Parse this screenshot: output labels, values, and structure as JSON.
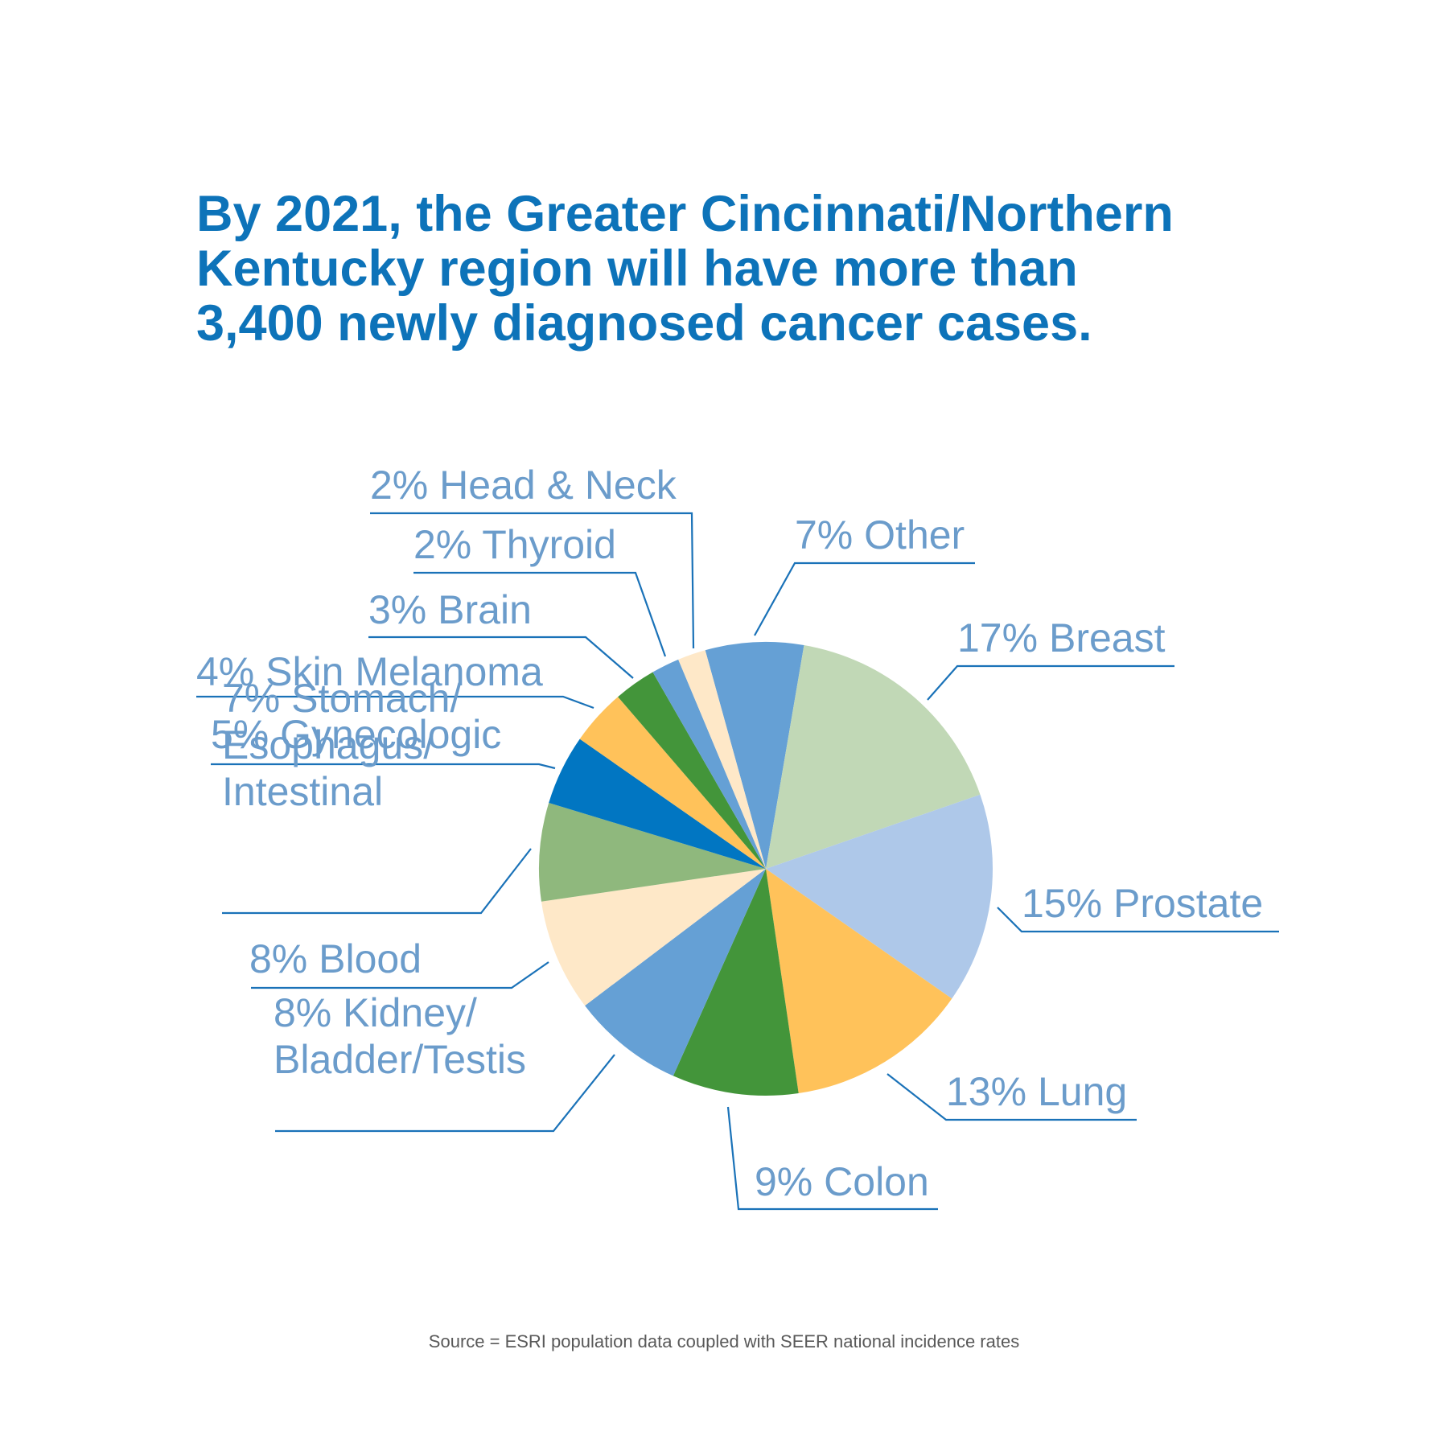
{
  "title": {
    "lines": [
      "By 2021, the Greater Cincinnati/Northern",
      "Kentucky region will have more than",
      "3,400 newly diagnosed cancer cases."
    ]
  },
  "source": "Source = ESRI population data coupled with SEER national incidence rates",
  "chart_data": {
    "type": "pie",
    "title": "By 2021, the Greater Cincinnati/Northern Kentucky region will have more than 3,400 newly diagnosed cancer cases.",
    "unit": "%",
    "slices": [
      {
        "label": "Other",
        "value": 7,
        "text_lines": [
          "7% Other"
        ],
        "color": "#65a0d5"
      },
      {
        "label": "Breast",
        "value": 17,
        "text_lines": [
          "17% Breast"
        ],
        "color": "#c1d8b6"
      },
      {
        "label": "Prostate",
        "value": 15,
        "text_lines": [
          "15% Prostate"
        ],
        "color": "#aec8e9"
      },
      {
        "label": "Lung",
        "value": 13,
        "text_lines": [
          "13% Lung"
        ],
        "color": "#ffc25a"
      },
      {
        "label": "Colon",
        "value": 9,
        "text_lines": [
          "9% Colon"
        ],
        "color": "#43953a"
      },
      {
        "label": "Kidney/Bladder/Testis",
        "value": 8,
        "text_lines": [
          "8% Kidney/",
          "Bladder/Testis"
        ],
        "color": "#65a0d5"
      },
      {
        "label": "Blood",
        "value": 8,
        "text_lines": [
          "8% Blood"
        ],
        "color": "#fee8c8"
      },
      {
        "label": "Stomach/Esophagus/Intestinal",
        "value": 7,
        "text_lines": [
          "7% Stomach/",
          "Esophagus/",
          "Intestinal"
        ],
        "color": "#8fb87d"
      },
      {
        "label": "Gynecologic",
        "value": 5,
        "text_lines": [
          "5% Gynecologic"
        ],
        "color": "#0176c2"
      },
      {
        "label": "Skin Melanoma",
        "value": 4,
        "text_lines": [
          "4% Skin Melanoma"
        ],
        "color": "#ffc25a"
      },
      {
        "label": "Brain",
        "value": 3,
        "text_lines": [
          "3% Brain"
        ],
        "color": "#43953a"
      },
      {
        "label": "Thyroid",
        "value": 2,
        "text_lines": [
          "2% Thyroid"
        ],
        "color": "#65a0d5"
      },
      {
        "label": "Head & Neck",
        "value": 2,
        "text_lines": [
          "2% Head & Neck"
        ],
        "color": "#fee8c8"
      }
    ]
  }
}
